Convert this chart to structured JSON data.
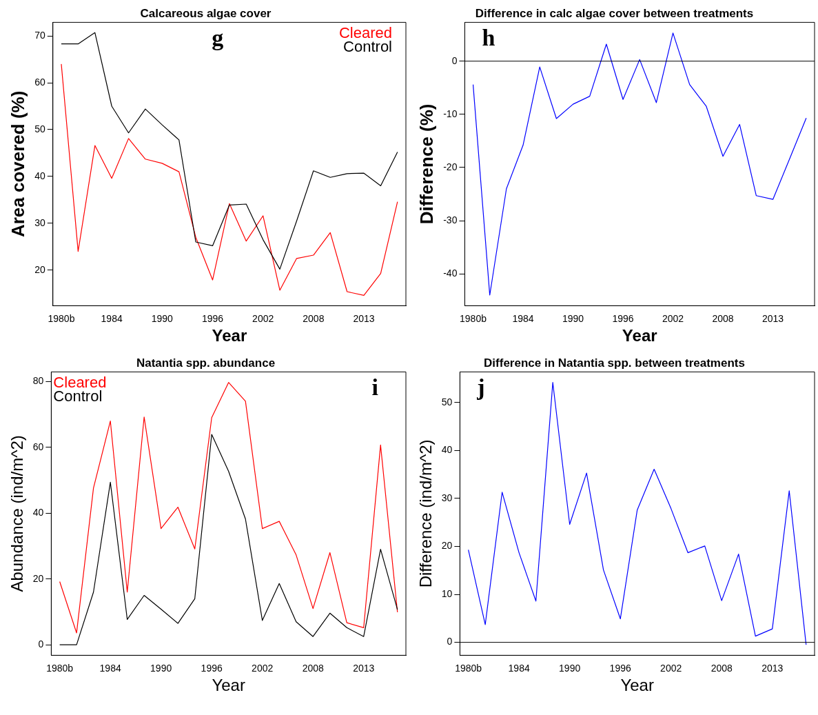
{
  "chart_data": [
    {
      "type": "line",
      "title": "Calcareous algae cover",
      "xlabel": "Year",
      "ylabel": "Area covered (%)",
      "categories": [
        "1980b",
        null,
        null,
        "1984",
        null,
        null,
        "1990",
        null,
        null,
        "1996",
        null,
        null,
        "2002",
        null,
        null,
        "2008",
        null,
        null,
        "2013",
        null,
        null
      ],
      "series": [
        {
          "name": "Cleared",
          "color": "#ff0000",
          "values": [
            64,
            24,
            46.6,
            39.6,
            48.1,
            43.7,
            42.8,
            41,
            27,
            17.9,
            34.2,
            26.2,
            31.6,
            15.7,
            22.5,
            23.2,
            28,
            15.4,
            14.6,
            19.3,
            34.6
          ]
        },
        {
          "name": "Control",
          "color": "#000000",
          "values": [
            68.3,
            68.3,
            70.7,
            55,
            49.3,
            54.4,
            51,
            47.8,
            26,
            25.2,
            33.9,
            34.1,
            26.5,
            20.2,
            30.5,
            41.2,
            39.8,
            40.6,
            40.7,
            38,
            45.2
          ]
        }
      ],
      "ylim": [
        12.4,
        72.9
      ],
      "yticks": [
        20,
        30,
        40,
        50,
        60,
        70
      ],
      "grid": false,
      "legend": "top right",
      "annotations": [
        "g"
      ]
    },
    {
      "type": "line",
      "title": "Difference in calc algae cover between treatments",
      "xlabel": "Year",
      "ylabel": "Difference (%)",
      "categories": [
        "1980b",
        null,
        null,
        "1984",
        null,
        null,
        "1990",
        null,
        null,
        "1996",
        null,
        null,
        "2002",
        null,
        null,
        "2008",
        null,
        null,
        "2013",
        null,
        null
      ],
      "series": [
        {
          "color": "#0000ff",
          "values": [
            -4.4,
            -44,
            -24,
            -15.8,
            -1.1,
            -10.8,
            -8.1,
            -6.6,
            3.2,
            -7.2,
            0.3,
            -7.8,
            5.3,
            -4.4,
            -8.5,
            -17.9,
            -11.9,
            -25.3,
            -26,
            -18.4,
            -10.7
          ]
        }
      ],
      "ylim": [
        -46,
        7.3
      ],
      "yticks": [
        -40,
        -30,
        -20,
        -10,
        0
      ],
      "grid": false,
      "ref_lines": [
        {
          "axis": "y",
          "value": 0,
          "color": "#000000"
        }
      ],
      "annotations": [
        "h"
      ]
    },
    {
      "type": "line",
      "title": "Natantia spp. abundance",
      "xlabel": "Year",
      "ylabel": "Abundance (ind/m^2)",
      "categories": [
        "1980b",
        null,
        null,
        "1984",
        null,
        null,
        "1990",
        null,
        null,
        "1996",
        null,
        null,
        "2002",
        null,
        null,
        "2008",
        null,
        null,
        "2013",
        null,
        null
      ],
      "series": [
        {
          "name": "Cleared",
          "color": "#ff0000",
          "values": [
            19.2,
            3.6,
            47.6,
            68,
            16,
            69.2,
            35.3,
            41.8,
            29.1,
            69,
            79.7,
            74,
            35.3,
            37.5,
            27.3,
            11,
            28,
            6.7,
            5.2,
            60.7,
            9.9
          ]
        },
        {
          "name": "Control",
          "color": "#000000",
          "values": [
            0,
            0,
            16,
            49.4,
            7.7,
            15,
            10.8,
            6.5,
            14,
            63.9,
            52.7,
            38.2,
            7.4,
            18.6,
            7,
            2.5,
            9.6,
            5.2,
            2.5,
            29,
            10.7
          ]
        }
      ],
      "ylim": [
        -3.2,
        82.9
      ],
      "yticks": [
        0,
        20,
        40,
        60,
        80
      ],
      "grid": false,
      "legend": "top left",
      "annotations": [
        "i"
      ]
    },
    {
      "type": "line",
      "title": "Difference in Natantia spp. between treatments",
      "xlabel": "Year",
      "ylabel": "Difference (ind/m^2)",
      "categories": [
        "1980b",
        null,
        null,
        "1984",
        null,
        null,
        "1990",
        null,
        null,
        "1996",
        null,
        null,
        "2002",
        null,
        null,
        "2008",
        null,
        null,
        "2013",
        null,
        null
      ],
      "series": [
        {
          "color": "#0000ff",
          "values": [
            19.3,
            3.7,
            31.3,
            18.7,
            8.6,
            54.2,
            24.6,
            35.3,
            15.1,
            4.9,
            27.6,
            36.1,
            27.9,
            18.7,
            20.1,
            8.7,
            18.4,
            1.3,
            2.8,
            31.6,
            -0.5
          ]
        }
      ],
      "ylim": [
        -2.7,
        56.4
      ],
      "yticks": [
        0,
        10,
        20,
        30,
        40,
        50
      ],
      "grid": false,
      "ref_lines": [
        {
          "axis": "y",
          "value": 0,
          "color": "#000000"
        }
      ],
      "annotations": [
        "j"
      ]
    }
  ]
}
